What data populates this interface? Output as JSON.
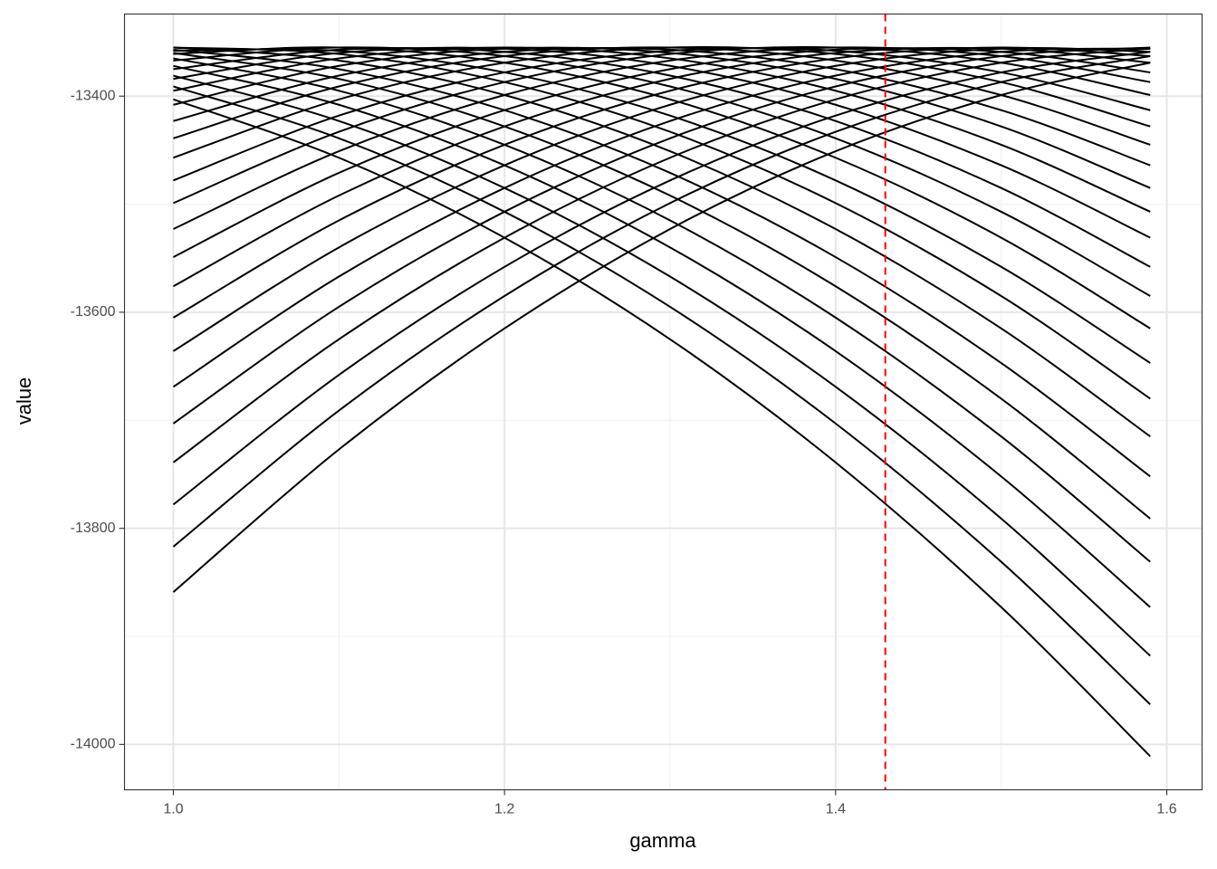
{
  "chart_data": {
    "type": "line",
    "x_label": "gamma",
    "y_label": "value",
    "x": [
      1.0,
      1.1,
      1.2,
      1.3,
      1.4,
      1.5,
      1.59
    ],
    "color": "#000000",
    "series": [
      {
        "values": [
          -13403,
          -13457,
          -13531,
          -13625,
          -13739,
          -13873,
          -14011
        ]
      },
      {
        "values": [
          -13391,
          -13439,
          -13507,
          -13595,
          -13703,
          -13831,
          -13963
        ]
      },
      {
        "values": [
          -13381,
          -13423,
          -13485,
          -13567,
          -13669,
          -13791,
          -13918
        ]
      },
      {
        "values": [
          -13372,
          -13408,
          -13464,
          -13540,
          -13636,
          -13752,
          -13873
        ]
      },
      {
        "values": [
          -13365,
          -13395,
          -13445,
          -13515,
          -13605,
          -13715,
          -13831
        ]
      },
      {
        "values": [
          -13360,
          -13384,
          -13428,
          -13492,
          -13576,
          -13680,
          -13791
        ]
      },
      {
        "values": [
          -13357,
          -13375,
          -13413,
          -13471,
          -13549,
          -13647,
          -13752
        ]
      },
      {
        "values": [
          -13355,
          -13367,
          -13399,
          -13451,
          -13523,
          -13615,
          -13715
        ]
      },
      {
        "values": [
          -13355,
          -13361,
          -13387,
          -13433,
          -13499,
          -13585,
          -13680
        ]
      },
      {
        "values": [
          -13358,
          -13358,
          -13378,
          -13418,
          -13478,
          -13558,
          -13647
        ]
      },
      {
        "values": [
          -13361,
          -13355,
          -13369,
          -13403,
          -13457,
          -13531,
          -13615
        ]
      },
      {
        "values": [
          -13367,
          -13355,
          -13363,
          -13391,
          -13439,
          -13507,
          -13585
        ]
      },
      {
        "values": [
          -13375,
          -13357,
          -13359,
          -13381,
          -13423,
          -13485,
          -13558
        ]
      },
      {
        "values": [
          -13384,
          -13360,
          -13356,
          -13372,
          -13408,
          -13464,
          -13531
        ]
      },
      {
        "values": [
          -13395,
          -13365,
          -13355,
          -13365,
          -13395,
          -13445,
          -13507
        ]
      },
      {
        "values": [
          -13408,
          -13372,
          -13356,
          -13360,
          -13384,
          -13428,
          -13485
        ]
      },
      {
        "values": [
          -13423,
          -13381,
          -13359,
          -13357,
          -13375,
          -13413,
          -13464
        ]
      },
      {
        "values": [
          -13439,
          -13391,
          -13363,
          -13355,
          -13367,
          -13399,
          -13445
        ]
      },
      {
        "values": [
          -13457,
          -13403,
          -13369,
          -13355,
          -13361,
          -13387,
          -13428
        ]
      },
      {
        "values": [
          -13478,
          -13418,
          -13378,
          -13358,
          -13358,
          -13378,
          -13413
        ]
      },
      {
        "values": [
          -13499,
          -13433,
          -13387,
          -13361,
          -13355,
          -13369,
          -13399
        ]
      },
      {
        "values": [
          -13523,
          -13451,
          -13399,
          -13367,
          -13355,
          -13363,
          -13387
        ]
      },
      {
        "values": [
          -13549,
          -13471,
          -13413,
          -13375,
          -13357,
          -13359,
          -13378
        ]
      },
      {
        "values": [
          -13576,
          -13492,
          -13428,
          -13384,
          -13360,
          -13356,
          -13369
        ]
      },
      {
        "values": [
          -13605,
          -13515,
          -13445,
          -13395,
          -13365,
          -13355,
          -13363
        ]
      },
      {
        "values": [
          -13636,
          -13540,
          -13464,
          -13408,
          -13372,
          -13356,
          -13359
        ]
      },
      {
        "values": [
          -13669,
          -13567,
          -13485,
          -13423,
          -13381,
          -13359,
          -13356
        ]
      },
      {
        "values": [
          -13703,
          -13595,
          -13507,
          -13439,
          -13391,
          -13363,
          -13355
        ]
      },
      {
        "values": [
          -13739,
          -13625,
          -13531,
          -13457,
          -13403,
          -13369,
          -13356
        ]
      },
      {
        "values": [
          -13778,
          -13658,
          -13558,
          -13478,
          -13418,
          -13378,
          -13359
        ]
      },
      {
        "values": [
          -13817,
          -13691,
          -13585,
          -13499,
          -13433,
          -13387,
          -13363
        ]
      },
      {
        "values": [
          -13859,
          -13727,
          -13615,
          -13523,
          -13451,
          -13399,
          -13369
        ]
      }
    ],
    "vlines": [
      {
        "value": 1.43,
        "color": "#ff0000",
        "dashed": true
      }
    ],
    "xlim": [
      0.9705,
      1.6213
    ],
    "ylim": [
      -14042,
      -13324
    ],
    "xticks": [
      {
        "value": 1,
        "label": "1.0"
      },
      1.2,
      1.4,
      1.6
    ],
    "yticks": [
      -14000,
      -13800,
      -13600,
      -13400
    ],
    "minor_xticks": [
      1.1,
      1.3,
      1.5
    ],
    "minor_yticks": [
      -13900,
      -13700,
      -13500
    ],
    "grid": true
  }
}
